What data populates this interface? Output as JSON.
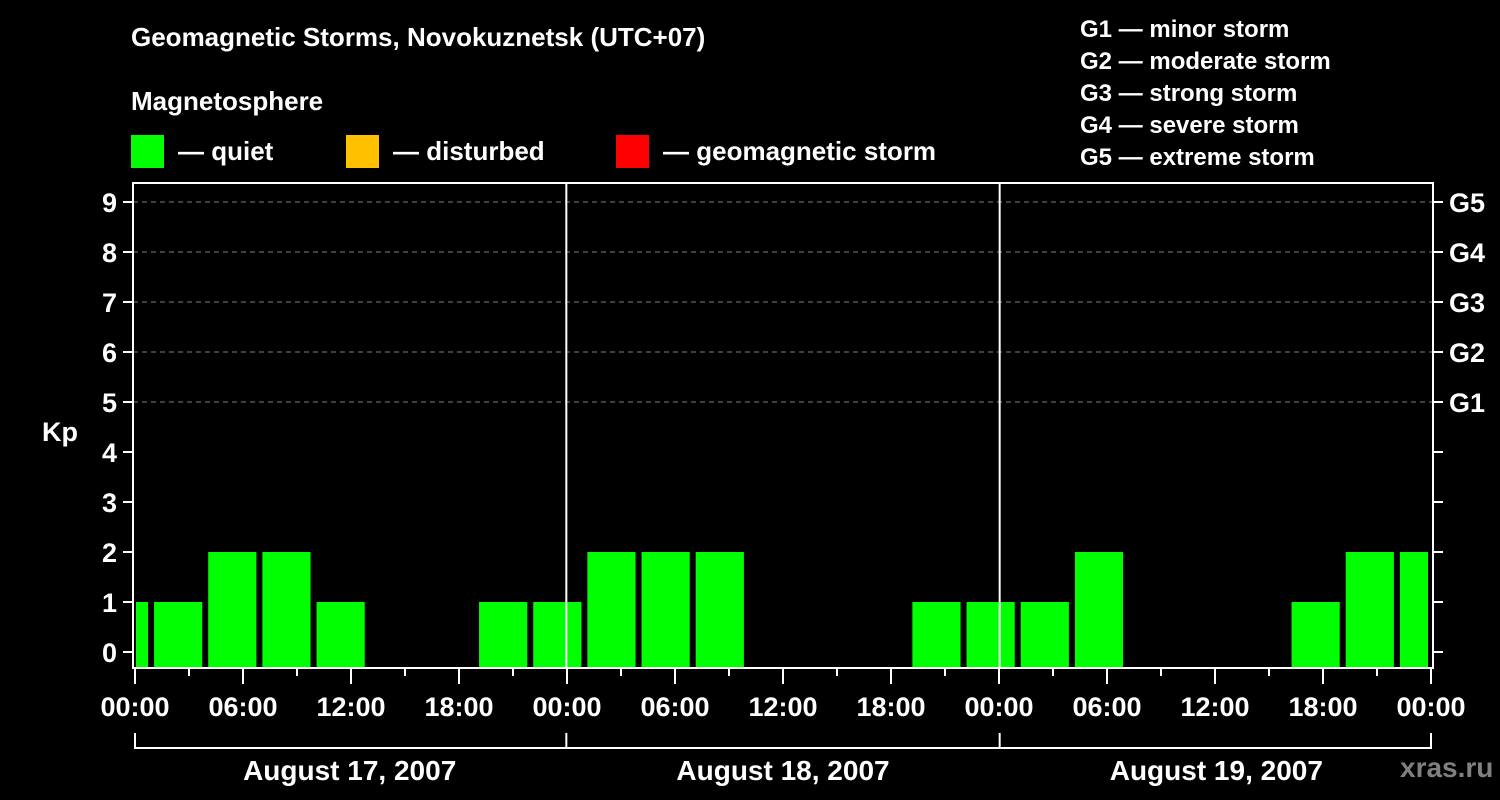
{
  "header": {
    "title": "Geomagnetic Storms, Novokuznetsk (UTC+07)",
    "subtitle": "Magnetosphere"
  },
  "legend": [
    {
      "label": "— quiet",
      "color": "#00ff00"
    },
    {
      "label": "— disturbed",
      "color": "#ffc000"
    },
    {
      "label": "— geomagnetic storm",
      "color": "#ff0000"
    }
  ],
  "g_levels": [
    "G1 — minor storm",
    "G2 — moderate storm",
    "G3 — strong storm",
    "G4 — severe storm",
    "G5 — extreme storm"
  ],
  "watermark": "xras.ru",
  "chart_data": {
    "type": "bar",
    "title": "Geomagnetic Storms, Novokuznetsk (UTC+07)",
    "ylabel": "Kp",
    "xlabel": "",
    "ylim": [
      0,
      9
    ],
    "yticks": [
      0,
      1,
      2,
      3,
      4,
      5,
      6,
      7,
      8,
      9
    ],
    "right_axis": [
      {
        "kp": 5,
        "label": "G1"
      },
      {
        "kp": 6,
        "label": "G2"
      },
      {
        "kp": 7,
        "label": "G3"
      },
      {
        "kp": 8,
        "label": "G4"
      },
      {
        "kp": 9,
        "label": "G5"
      }
    ],
    "grid": "dashed horizontal at Kp 5-9",
    "xtick_labels": [
      "00:00",
      "06:00",
      "12:00",
      "18:00",
      "00:00",
      "06:00",
      "12:00",
      "18:00",
      "00:00",
      "06:00",
      "12:00",
      "18:00",
      "00:00"
    ],
    "days": [
      "August 17, 2007",
      "August 18, 2007",
      "August 19, 2007"
    ],
    "bar_interval_hours": 3,
    "first_bar_start_hour": -2,
    "bar_color": "#00ff00",
    "values": [
      1,
      1,
      2,
      2,
      1,
      0,
      0,
      1,
      1,
      2,
      2,
      2,
      0,
      0,
      0,
      1,
      1,
      1,
      2,
      0,
      0,
      0,
      1,
      2,
      2
    ],
    "colors": {
      "quiet": "#00ff00",
      "disturbed": "#ffc000",
      "storm": "#ff0000",
      "axis": "#ffffff",
      "grid": "#808080"
    }
  }
}
